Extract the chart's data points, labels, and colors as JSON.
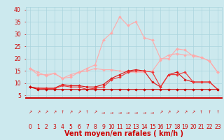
{
  "background_color": "#cce9ee",
  "grid_color": "#aad4dd",
  "x": [
    0,
    1,
    2,
    3,
    4,
    5,
    6,
    7,
    8,
    9,
    10,
    11,
    12,
    13,
    14,
    15,
    16,
    17,
    18,
    19,
    20,
    21,
    22,
    23
  ],
  "ylim": [
    4,
    41
  ],
  "yticks": [
    5,
    10,
    15,
    20,
    25,
    30,
    35,
    40
  ],
  "series": [
    {
      "y": [
        8.5,
        7.5,
        7.5,
        7.5,
        7.5,
        7.5,
        7.5,
        7.5,
        7.5,
        7.5,
        7.5,
        7.5,
        7.5,
        7.5,
        7.5,
        7.5,
        7.5,
        7.5,
        7.5,
        7.5,
        7.5,
        7.5,
        7.5,
        7.5
      ],
      "color": "#cc0000",
      "lw": 0.8,
      "marker": "D",
      "ms": 1.8,
      "zorder": 5
    },
    {
      "y": [
        8.5,
        8.0,
        7.8,
        7.8,
        9.0,
        8.5,
        8.5,
        7.5,
        8.0,
        8.5,
        11.5,
        12.5,
        14.5,
        15.0,
        15.0,
        14.5,
        8.5,
        13.5,
        13.5,
        14.5,
        10.5,
        10.5,
        10.5,
        7.5
      ],
      "color": "#ee3333",
      "lw": 0.8,
      "marker": "D",
      "ms": 1.8,
      "zorder": 4
    },
    {
      "y": [
        8.5,
        8.0,
        8.0,
        8.0,
        9.5,
        9.0,
        9.0,
        8.5,
        8.5,
        9.5,
        12.0,
        13.5,
        15.0,
        15.5,
        15.0,
        10.5,
        8.5,
        13.5,
        14.5,
        11.5,
        10.5,
        10.5,
        10.5,
        7.5
      ],
      "color": "#dd1111",
      "lw": 0.8,
      "marker": "D",
      "ms": 1.8,
      "zorder": 3
    },
    {
      "y": [
        16.0,
        14.5,
        13.0,
        14.0,
        12.0,
        13.5,
        14.5,
        15.0,
        16.0,
        15.5,
        15.5,
        15.0,
        14.5,
        14.5,
        14.5,
        15.0,
        19.5,
        21.5,
        22.0,
        21.5,
        21.5,
        20.5,
        19.0,
        14.5
      ],
      "color": "#ffaaaa",
      "lw": 0.8,
      "marker": "D",
      "ms": 1.8,
      "zorder": 2
    },
    {
      "y": [
        16.0,
        13.5,
        13.5,
        14.0,
        12.0,
        12.5,
        14.5,
        16.0,
        17.5,
        27.5,
        30.5,
        37.0,
        33.5,
        35.0,
        28.5,
        27.5,
        20.0,
        20.0,
        24.0,
        23.5,
        21.0,
        20.5,
        19.0,
        14.5
      ],
      "color": "#ffaaaa",
      "lw": 0.8,
      "marker": "D",
      "ms": 2.0,
      "zorder": 6
    }
  ],
  "arrows": [
    "↗",
    "↗",
    "↗",
    "↗",
    "↑",
    "↗",
    "↗",
    "↑",
    "↗",
    "→",
    "→",
    "→",
    "→",
    "→",
    "→",
    "→",
    "↗",
    "↗",
    "↗",
    "↗",
    "↗",
    "↑",
    "↑",
    "↑"
  ],
  "xlabel": "Vent moyen/en rafales ( km/h )",
  "xlabel_color": "#cc0000",
  "xlabel_fontsize": 7,
  "tick_color": "#cc0000",
  "tick_fontsize": 5.5,
  "arrow_color": "#cc0000",
  "arrow_fontsize": 4.5,
  "spine_color": "#cc0000"
}
